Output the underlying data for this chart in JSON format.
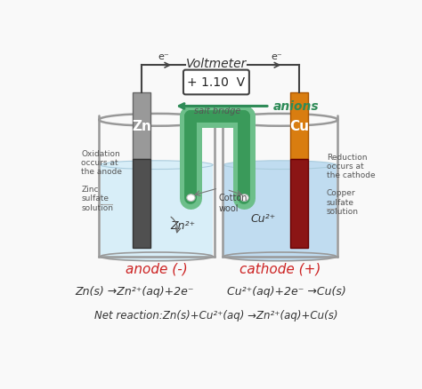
{
  "title": "Voltmeter",
  "voltmeter_text": "+ 1.10  V",
  "anions_text": "anions",
  "salt_bridge_text": "salt bridge",
  "cotton_wool_text": "Cotton\nwool",
  "anode_label": "anode (-)",
  "cathode_label": "cathode (+)",
  "zn_label": "Zn",
  "cu_label": "Cu",
  "zn2_label": "Zn²⁺",
  "cu2_label": "Cu²⁺",
  "oxidation_text": "Oxidation\noccurs at\nthe anode",
  "zinc_sulfate_text": "Zinc\nsulfate\nsolution",
  "reduction_text": "Reduction\noccurs at\nthe cathode",
  "copper_sulfate_text": "Copper\nsulfate\nsolution",
  "eq1_left": "Zn(s) →Zn²⁺(aq)+2e⁻",
  "eq1_right": "Cu²⁺(aq)+2e⁻ →Cu(s)",
  "eq2": "Net reaction:Zn(s)+Cu²⁺(aq) →Zn²⁺(aq)+Cu(s)",
  "bg_color": "#f9f9f9",
  "solution_color_left": "#d8eef8",
  "solution_color_right": "#c0dcf0",
  "beaker_edge_color": "#999999",
  "zn_electrode_color_top": "#999999",
  "zn_electrode_color_bottom": "#505050",
  "cu_electrode_color_top": "#d97d10",
  "cu_electrode_color_bottom": "#8b1515",
  "salt_bridge_outer": "#6dbf8a",
  "salt_bridge_inner": "#2a7a45",
  "salt_bridge_fill": "#3a9a5a",
  "voltmeter_box_color": "#444444",
  "wire_color": "#444444",
  "anions_color": "#2e8b57",
  "anode_label_color": "#cc2222",
  "cathode_label_color": "#cc2222",
  "equation_color": "#333333",
  "label_color": "#444444",
  "side_label_color": "#555555"
}
